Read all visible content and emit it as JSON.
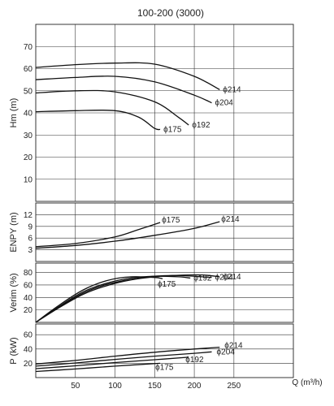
{
  "chart_data": {
    "type": "line",
    "title": "100-200 (3000)",
    "xlabel": "Q (m³/h)",
    "xlim": [
      0,
      325
    ],
    "x_ticks": [
      "50",
      "100",
      "150",
      "200",
      "250"
    ],
    "grid": true,
    "impeller_marker": "ϕ",
    "panels": [
      {
        "id": "head",
        "ylabel": "Hm (m)",
        "ylim": [
          0,
          80
        ],
        "y_ticks": [
          "10",
          "20",
          "30",
          "40",
          "50",
          "60",
          "70"
        ],
        "series": [
          {
            "name": "214",
            "x": [
              0,
              50,
              100,
              150,
              200,
              232
            ],
            "y": [
              60.5,
              61.8,
              62.5,
              62,
              56.5,
              50.5
            ]
          },
          {
            "name": "204",
            "x": [
              0,
              50,
              100,
              150,
              200,
              222
            ],
            "y": [
              55,
              56,
              56.5,
              54,
              48,
              44.5
            ]
          },
          {
            "name": "192",
            "x": [
              0,
              50,
              100,
              150,
              180,
              193
            ],
            "y": [
              49,
              50,
              49.5,
              45,
              38,
              34.5
            ]
          },
          {
            "name": "175",
            "x": [
              0,
              50,
              100,
              130,
              150,
              157
            ],
            "y": [
              40.5,
              41,
              41,
              38,
              33,
              32.5
            ]
          }
        ]
      },
      {
        "id": "npsh",
        "ylabel": "ENPY (m)",
        "ylim": [
          0,
          15
        ],
        "y_ticks": [
          "3",
          "6",
          "9",
          "12"
        ],
        "series": [
          {
            "name": "175",
            "x": [
              0,
              50,
              100,
              130,
              157
            ],
            "y": [
              3.8,
              4.6,
              6.3,
              8.2,
              10
            ]
          },
          {
            "name": "214",
            "x": [
              0,
              50,
              100,
              150,
              200,
              232
            ],
            "y": [
              3.4,
              4.1,
              5.2,
              6.7,
              8.5,
              10.2
            ]
          }
        ]
      },
      {
        "id": "efficiency",
        "ylabel": "Verim (%)",
        "ylim": [
          0,
          95
        ],
        "y_ticks": [
          "20",
          "40",
          "60",
          "80"
        ],
        "series": [
          {
            "name": "175",
            "x": [
              0,
              30,
              60,
              90,
              120,
              150,
              160
            ],
            "y": [
              0,
              28,
              52,
              67,
              73,
              72,
              70
            ]
          },
          {
            "name": "192",
            "x": [
              0,
              30,
              60,
              90,
              120,
              150,
              180,
              195
            ],
            "y": [
              0,
              26,
              49,
              63,
              71,
              74,
              73,
              71
            ]
          },
          {
            "name": "204",
            "x": [
              0,
              30,
              60,
              90,
              120,
              150,
              180,
              210,
              222
            ],
            "y": [
              0,
              25,
              47,
              61,
              69,
              74,
              75,
              73,
              72
            ]
          },
          {
            "name": "214",
            "x": [
              0,
              30,
              60,
              90,
              120,
              150,
              180,
              210,
              232
            ],
            "y": [
              0,
              24,
              45,
              59,
              68,
              73,
              75.5,
              76,
              73
            ]
          }
        ]
      },
      {
        "id": "power",
        "ylabel": "P (kW)",
        "ylim": [
          0,
          75
        ],
        "y_ticks": [
          "20",
          "40",
          "60"
        ],
        "series": [
          {
            "name": "214",
            "x": [
              0,
              50,
              100,
              150,
              200,
              232
            ],
            "y": [
              19,
              24,
              30,
              35.5,
              40,
              42.5
            ]
          },
          {
            "name": "204",
            "x": [
              0,
              50,
              100,
              150,
              200,
              222
            ],
            "y": [
              16,
              20.5,
              25.5,
              30,
              34,
              36
            ]
          },
          {
            "name": "192",
            "x": [
              0,
              50,
              100,
              150,
              193
            ],
            "y": [
              12.5,
              16.5,
              21,
              25,
              28.5
            ]
          },
          {
            "name": "175",
            "x": [
              0,
              50,
              100,
              157
            ],
            "y": [
              8.5,
              12,
              16,
              20
            ]
          }
        ]
      }
    ]
  }
}
